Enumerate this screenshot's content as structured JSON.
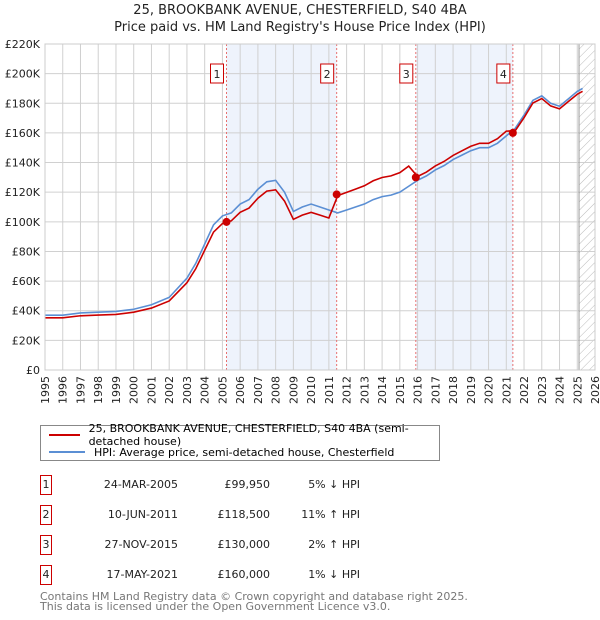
{
  "chart_data": {
    "type": "line",
    "title": "25, BROOKBANK AVENUE, CHESTERFIELD, S40 4BA",
    "subtitle": "Price paid vs. HM Land Registry's House Price Index (HPI)",
    "xlim": [
      1995,
      2026
    ],
    "ylim": [
      0,
      220000
    ],
    "yticks": [
      0,
      20000,
      40000,
      60000,
      80000,
      100000,
      120000,
      140000,
      160000,
      180000,
      200000,
      220000
    ],
    "ytick_labels": [
      "£0",
      "£20K",
      "£40K",
      "£60K",
      "£80K",
      "£100K",
      "£120K",
      "£140K",
      "£160K",
      "£180K",
      "£200K",
      "£220K"
    ],
    "xticks": [
      "1995",
      "1996",
      "1997",
      "1998",
      "1999",
      "2000",
      "2001",
      "2002",
      "2003",
      "2004",
      "2005",
      "2006",
      "2007",
      "2008",
      "2009",
      "2010",
      "2011",
      "2012",
      "2013",
      "2014",
      "2015",
      "2016",
      "2017",
      "2018",
      "2019",
      "2020",
      "2021",
      "2022",
      "2023",
      "2024",
      "2025",
      "2026"
    ],
    "grid": true,
    "x": [
      1995,
      1996,
      1997,
      1998,
      1999,
      2000,
      2001,
      2002,
      2003,
      2003.5,
      2004,
      2004.5,
      2005,
      2005.5,
      2006,
      2006.5,
      2007,
      2007.5,
      2008,
      2008.5,
      2009,
      2009.5,
      2010,
      2010.5,
      2011,
      2011.5,
      2012,
      2012.5,
      2013,
      2013.5,
      2014,
      2014.5,
      2015,
      2015.5,
      2016,
      2016.5,
      2017,
      2017.5,
      2018,
      2018.5,
      2019,
      2019.5,
      2020,
      2020.5,
      2021,
      2021.5,
      2022,
      2022.5,
      2023,
      2023.5,
      2024,
      2024.5,
      2025,
      2025.3
    ],
    "series": [
      {
        "name": "25, BROOKBANK AVENUE, CHESTERFIELD, S40 4BA (semi-detached house)",
        "color": "#cc0000",
        "values": [
          35.2,
          35.2,
          36.6,
          37.1,
          37.5,
          39,
          41.8,
          46.6,
          58.9,
          68.4,
          80.8,
          93.1,
          98.8,
          100.7,
          106.4,
          109.3,
          115.9,
          120.7,
          121.6,
          114,
          101.7,
          104.5,
          106.4,
          104.5,
          102.6,
          117.7,
          119.9,
          122.1,
          124.3,
          127.7,
          129.9,
          131,
          133.2,
          137.6,
          130.6,
          133.6,
          137.7,
          140.8,
          144.8,
          147.9,
          151,
          153,
          153,
          156.1,
          161.2,
          161.4,
          170.3,
          180.2,
          183.2,
          178.2,
          176.2,
          181.2,
          186.1,
          188.1
        ]
      },
      {
        "name": "HPI: Average price, semi-detached house, Chesterfield",
        "color": "#5b8fd4",
        "values": [
          37,
          37,
          38.5,
          39,
          39.5,
          41,
          44,
          49,
          62,
          72,
          85,
          98,
          104,
          106,
          112,
          115,
          122,
          127,
          128,
          120,
          107,
          110,
          112,
          110,
          108,
          106,
          108,
          110,
          112,
          115,
          117,
          118,
          120,
          124,
          128,
          131,
          135,
          138,
          142,
          145,
          148,
          150,
          150,
          153,
          158,
          163,
          172,
          182,
          185,
          180,
          178,
          183,
          188,
          190
        ]
      }
    ],
    "value_unit": "thousand GBP",
    "sales": [
      {
        "label": "1",
        "x": 2005.23,
        "price": 99950
      },
      {
        "label": "2",
        "x": 2011.44,
        "price": 118500
      },
      {
        "label": "3",
        "x": 2015.9,
        "price": 130000
      },
      {
        "label": "4",
        "x": 2021.37,
        "price": 160000
      }
    ],
    "shaded_ranges": [
      [
        2005.23,
        2011.44
      ],
      [
        2015.9,
        2021.37
      ]
    ],
    "forecast_start": 2025.1,
    "legend_placement": "below"
  },
  "legend": {
    "property": "25, BROOKBANK AVENUE, CHESTERFIELD, S40 4BA (semi-detached house)",
    "hpi": "HPI: Average price, semi-detached house, Chesterfield"
  },
  "transactions": [
    {
      "num": "1",
      "date": "24-MAR-2005",
      "price": "£99,950",
      "hpi": "5% ↓ HPI"
    },
    {
      "num": "2",
      "date": "10-JUN-2011",
      "price": "£118,500",
      "hpi": "11% ↑ HPI"
    },
    {
      "num": "3",
      "date": "27-NOV-2015",
      "price": "£130,000",
      "hpi": "2% ↑ HPI"
    },
    {
      "num": "4",
      "date": "17-MAY-2021",
      "price": "£160,000",
      "hpi": "1% ↓ HPI"
    }
  ],
  "footer": {
    "line1": "Contains HM Land Registry data © Crown copyright and database right 2025.",
    "line2": "This data is licensed under the Open Government Licence v3.0."
  }
}
